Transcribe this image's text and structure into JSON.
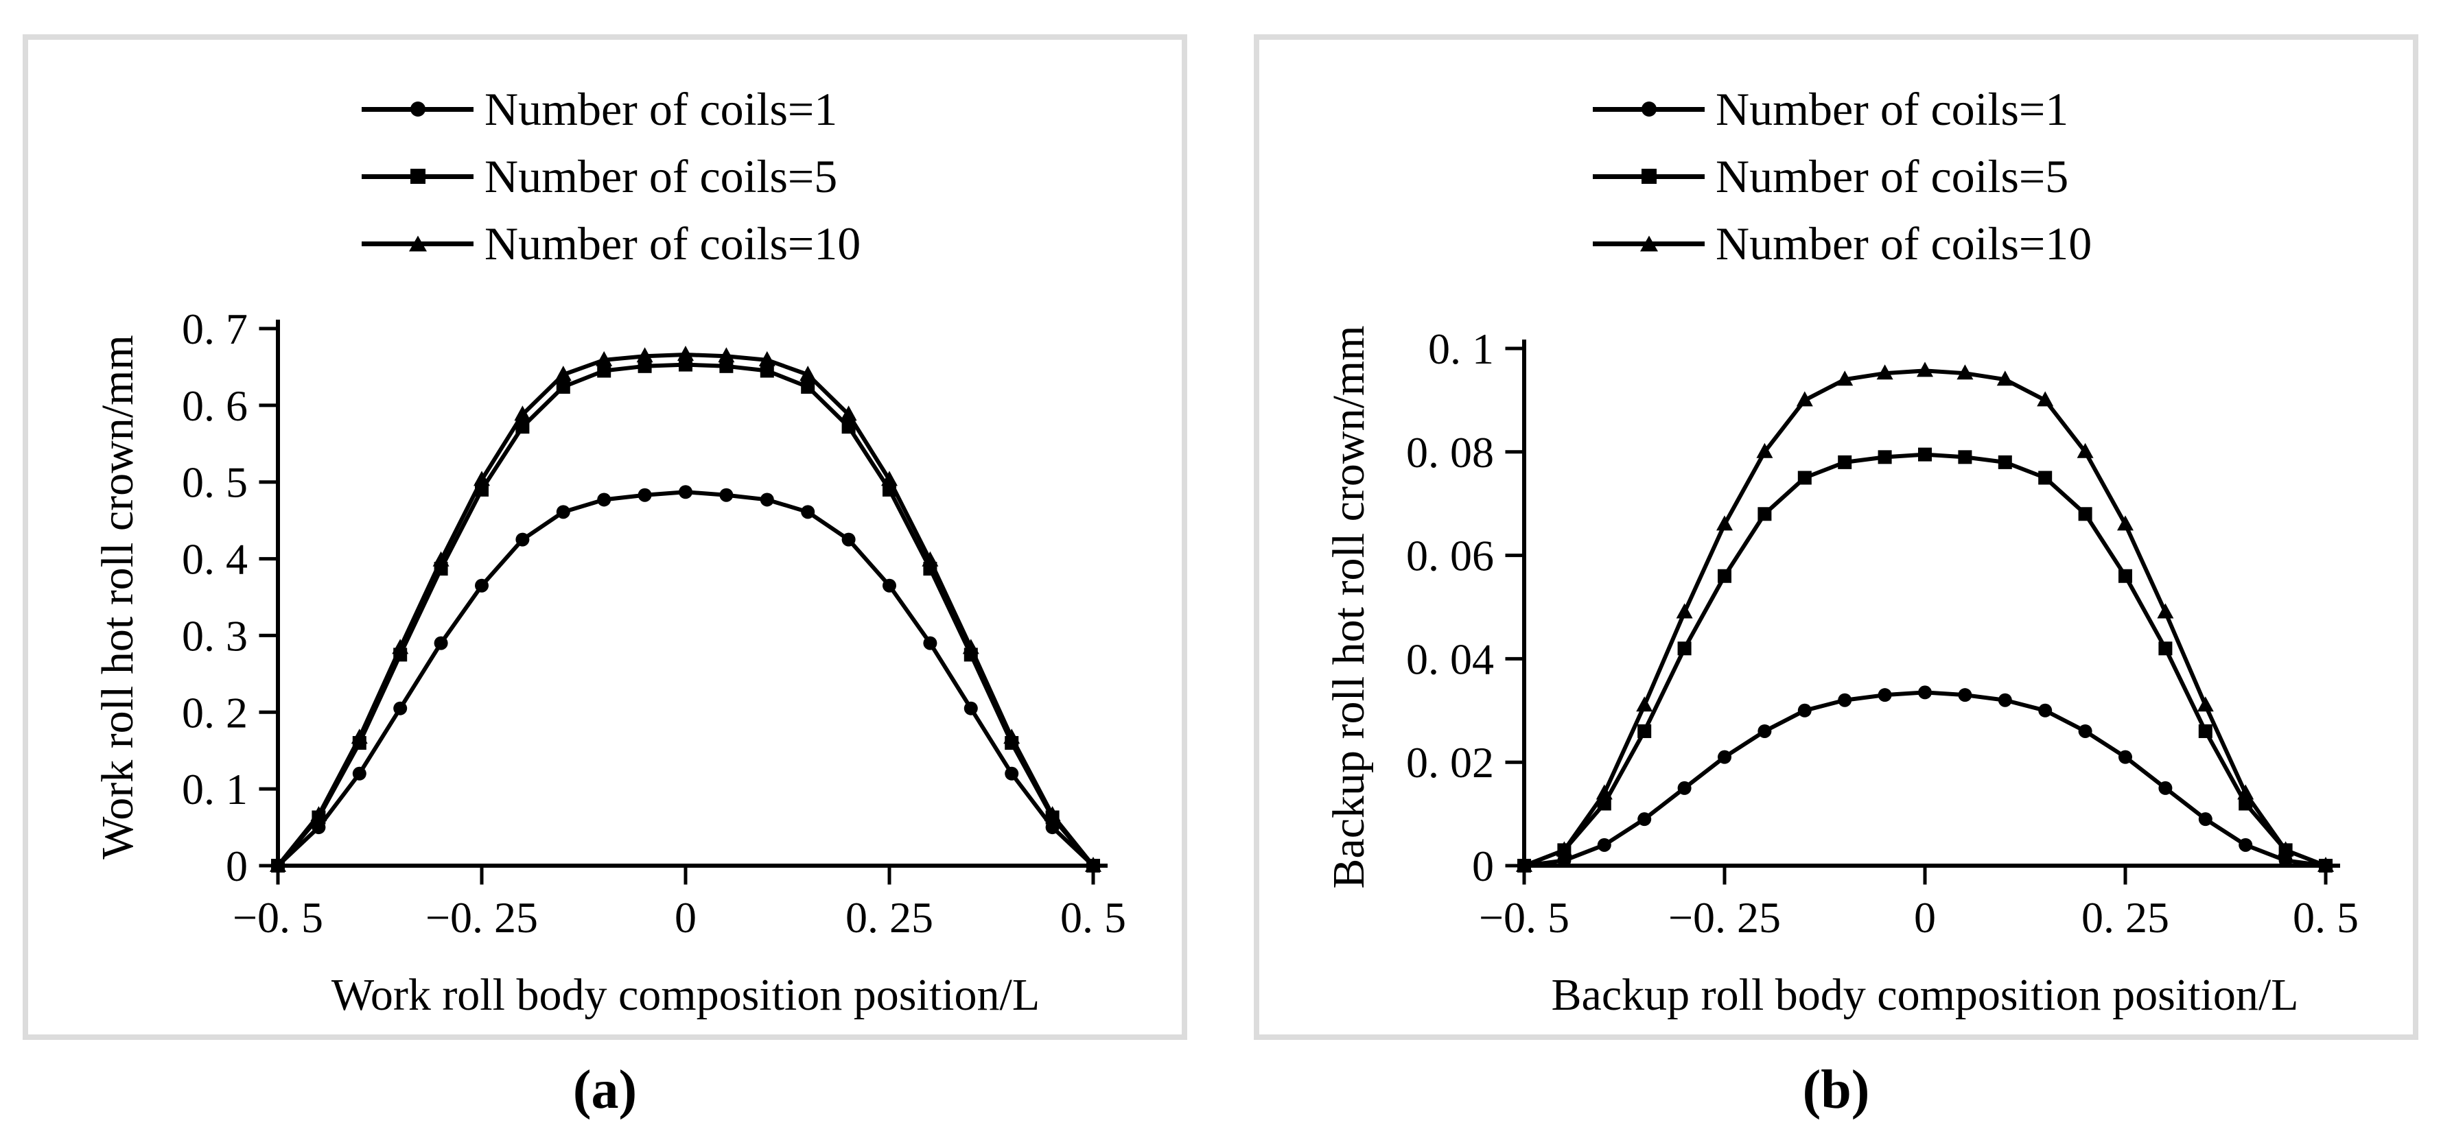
{
  "figure_type": "two-panel scientific line chart",
  "colors": {
    "line": "#000000",
    "panel_border": "#dcdcdc",
    "background": "#ffffff",
    "text": "#000000"
  },
  "captions": {
    "a": "(a)",
    "b": "(b)"
  },
  "chart_data": [
    {
      "type": "line",
      "panel": "a",
      "xlabel": "Work roll body composition position/L",
      "ylabel": "Work roll hot roll crown/mm",
      "xlim": [
        -0.5,
        0.5
      ],
      "ylim": [
        0,
        0.7
      ],
      "grid": false,
      "legend_position": "top-center",
      "xticks": [
        {
          "v": -0.5,
          "label": "−0. 5"
        },
        {
          "v": -0.25,
          "label": "−0. 25"
        },
        {
          "v": 0,
          "label": "0"
        },
        {
          "v": 0.25,
          "label": "0. 25"
        },
        {
          "v": 0.5,
          "label": "0. 5"
        }
      ],
      "yticks": [
        {
          "v": 0,
          "label": "0"
        },
        {
          "v": 0.1,
          "label": "0. 1"
        },
        {
          "v": 0.2,
          "label": "0. 2"
        },
        {
          "v": 0.3,
          "label": "0. 3"
        },
        {
          "v": 0.4,
          "label": "0. 4"
        },
        {
          "v": 0.5,
          "label": "0. 5"
        },
        {
          "v": 0.6,
          "label": "0. 6"
        },
        {
          "v": 0.7,
          "label": "0. 7"
        }
      ],
      "x": [
        -0.5,
        -0.45,
        -0.4,
        -0.35,
        -0.3,
        -0.25,
        -0.2,
        -0.15,
        -0.1,
        -0.05,
        0,
        0.05,
        0.1,
        0.15,
        0.2,
        0.25,
        0.3,
        0.35,
        0.4,
        0.45,
        0.5
      ],
      "series": [
        {
          "name": "Number of coils=1",
          "marker": "circle",
          "values": [
            0,
            0.05,
            0.12,
            0.205,
            0.29,
            0.365,
            0.425,
            0.461,
            0.477,
            0.483,
            0.487,
            0.483,
            0.477,
            0.461,
            0.425,
            0.365,
            0.29,
            0.205,
            0.12,
            0.05,
            0
          ]
        },
        {
          "name": "Number of coils=5",
          "marker": "square",
          "values": [
            0,
            0.063,
            0.16,
            0.275,
            0.387,
            0.49,
            0.572,
            0.624,
            0.645,
            0.651,
            0.653,
            0.651,
            0.645,
            0.624,
            0.572,
            0.49,
            0.387,
            0.275,
            0.16,
            0.063,
            0
          ]
        },
        {
          "name": "Number of coils=10",
          "marker": "triangle",
          "values": [
            0,
            0.066,
            0.167,
            0.284,
            0.398,
            0.503,
            0.588,
            0.64,
            0.659,
            0.664,
            0.666,
            0.664,
            0.659,
            0.64,
            0.588,
            0.503,
            0.398,
            0.284,
            0.167,
            0.066,
            0
          ]
        }
      ]
    },
    {
      "type": "line",
      "panel": "b",
      "xlabel": "Backup roll body composition position/L",
      "ylabel": "Backup roll hot roll crown/mm",
      "xlim": [
        -0.5,
        0.5
      ],
      "ylim": [
        0,
        0.1
      ],
      "grid": false,
      "legend_position": "top-center",
      "xticks": [
        {
          "v": -0.5,
          "label": "−0. 5"
        },
        {
          "v": -0.25,
          "label": "−0. 25"
        },
        {
          "v": 0,
          "label": "0"
        },
        {
          "v": 0.25,
          "label": "0. 25"
        },
        {
          "v": 0.5,
          "label": "0. 5"
        }
      ],
      "yticks": [
        {
          "v": 0,
          "label": "0"
        },
        {
          "v": 0.02,
          "label": "0. 02"
        },
        {
          "v": 0.04,
          "label": "0. 04"
        },
        {
          "v": 0.06,
          "label": "0. 06"
        },
        {
          "v": 0.08,
          "label": "0. 08"
        },
        {
          "v": 0.1,
          "label": "0. 1"
        }
      ],
      "x": [
        -0.5,
        -0.45,
        -0.4,
        -0.35,
        -0.3,
        -0.25,
        -0.2,
        -0.15,
        -0.1,
        -0.05,
        0,
        0.05,
        0.1,
        0.15,
        0.2,
        0.25,
        0.3,
        0.35,
        0.4,
        0.45,
        0.5
      ],
      "series": [
        {
          "name": "Number of coils=1",
          "marker": "circle",
          "values": [
            0,
            0.001,
            0.004,
            0.009,
            0.015,
            0.021,
            0.026,
            0.03,
            0.032,
            0.033,
            0.0335,
            0.033,
            0.032,
            0.03,
            0.026,
            0.021,
            0.015,
            0.009,
            0.004,
            0.001,
            0
          ]
        },
        {
          "name": "Number of coils=5",
          "marker": "square",
          "values": [
            0,
            0.003,
            0.012,
            0.026,
            0.042,
            0.056,
            0.068,
            0.075,
            0.078,
            0.079,
            0.0795,
            0.079,
            0.078,
            0.075,
            0.068,
            0.056,
            0.042,
            0.026,
            0.012,
            0.003,
            0
          ]
        },
        {
          "name": "Number of coils=10",
          "marker": "triangle",
          "values": [
            0,
            0.003,
            0.014,
            0.031,
            0.049,
            0.066,
            0.08,
            0.09,
            0.094,
            0.0952,
            0.0957,
            0.0952,
            0.094,
            0.09,
            0.08,
            0.066,
            0.049,
            0.031,
            0.014,
            0.003,
            0
          ]
        }
      ]
    }
  ]
}
